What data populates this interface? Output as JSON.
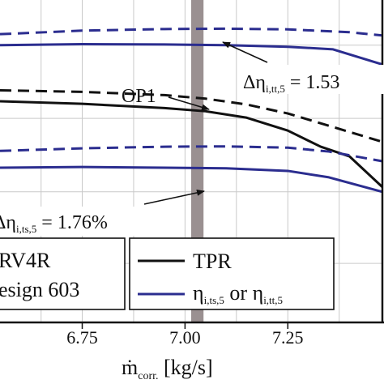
{
  "chart_data": {
    "type": "line",
    "xlabel_base": "ṁ",
    "xlabel_sub": "corr.",
    "xlabel_unit": " [kg/s]",
    "x_ticks": [
      "6.75",
      "7.00",
      "7.25"
    ],
    "x_tick_values": [
      6.75,
      7.0,
      7.25
    ],
    "xlim": [
      6.55,
      7.48
    ],
    "ylim": [
      0,
      1
    ],
    "grid": true,
    "op_band": {
      "x_from": 7.015,
      "x_to": 7.045,
      "color": "#9a9091"
    },
    "series": [
      {
        "key": "eff_tt_design",
        "style": "dash",
        "color": "#2b2d8f",
        "x": [
          6.55,
          6.75,
          6.95,
          7.1,
          7.25,
          7.4,
          7.48
        ],
        "y": [
          0.894,
          0.905,
          0.91,
          0.911,
          0.909,
          0.9,
          0.89
        ]
      },
      {
        "key": "eff_tt_603",
        "style": "solid",
        "color": "#2b2d8f",
        "x": [
          6.55,
          6.75,
          6.95,
          7.1,
          7.25,
          7.36,
          7.48
        ],
        "y": [
          0.86,
          0.863,
          0.862,
          0.86,
          0.855,
          0.847,
          0.8
        ]
      },
      {
        "key": "tpr_design",
        "style": "dash",
        "color": "#111111",
        "x": [
          6.55,
          6.75,
          6.95,
          7.05,
          7.15,
          7.25,
          7.35,
          7.48
        ],
        "y": [
          0.72,
          0.715,
          0.705,
          0.694,
          0.676,
          0.648,
          0.61,
          0.56
        ]
      },
      {
        "key": "tpr_603",
        "style": "solid",
        "color": "#111111",
        "x": [
          6.55,
          6.75,
          6.95,
          7.05,
          7.15,
          7.25,
          7.33,
          7.4,
          7.48
        ],
        "y": [
          0.686,
          0.678,
          0.665,
          0.655,
          0.635,
          0.595,
          0.545,
          0.515,
          0.42
        ]
      },
      {
        "key": "eff_ts_design",
        "style": "dash",
        "color": "#2b2d8f",
        "x": [
          6.55,
          6.75,
          6.95,
          7.1,
          7.25,
          7.35,
          7.48
        ],
        "y": [
          0.532,
          0.54,
          0.545,
          0.546,
          0.542,
          0.53,
          0.5
        ]
      },
      {
        "key": "eff_ts_603",
        "style": "solid",
        "color": "#2b2d8f",
        "x": [
          6.55,
          6.75,
          6.95,
          7.1,
          7.25,
          7.35,
          7.48
        ],
        "y": [
          0.48,
          0.482,
          0.48,
          0.478,
          0.47,
          0.45,
          0.405
        ]
      }
    ],
    "annotations": {
      "op1": "OP1",
      "delta_tt": {
        "base": "Δη",
        "sub": "i,tt,5",
        "value": " = 1.53"
      },
      "delta_ts": {
        "base": "Δη",
        "sub": "i,ts,5",
        "value": " = 1.76%"
      }
    },
    "legend_left": {
      "line1": "RV4R",
      "line2": "esign 603"
    },
    "legend_right": {
      "tpr": "TPR",
      "eta_a": "η",
      "eta_a_sub": "i,ts,5",
      "or": " or ",
      "eta_b": "η",
      "eta_b_sub": "i,tt,5"
    }
  }
}
